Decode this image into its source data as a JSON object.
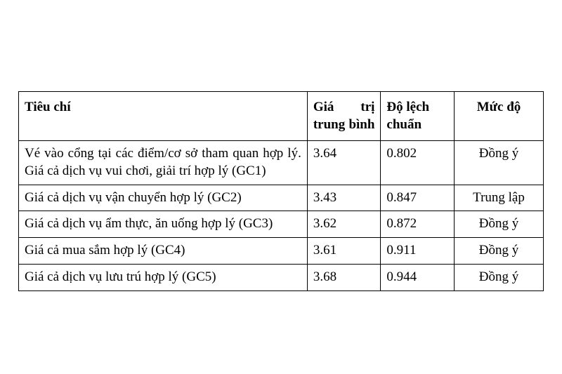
{
  "table": {
    "type": "table",
    "border_color": "#000000",
    "background_color": "#ffffff",
    "font_family": "Times New Roman",
    "font_size_pt": 14,
    "columns": [
      {
        "key": "criteria",
        "label": "Tiêu chí",
        "width_pct": 55,
        "align": "left"
      },
      {
        "key": "mean",
        "label": "Giá trị trung bình",
        "width_pct": 14,
        "align": "left"
      },
      {
        "key": "stddev",
        "label": "Độ lệch chuẩn",
        "width_pct": 14,
        "align": "left"
      },
      {
        "key": "level",
        "label": "Mức độ",
        "width_pct": 17,
        "align": "center"
      }
    ],
    "rows": [
      {
        "criteria": "Vé vào cổng tại các điểm/cơ sở tham quan hợp lý. Giá cả dịch vụ vui chơi, giải trí hợp lý (GC1)",
        "mean": "3.64",
        "stddev": "0.802",
        "level": "Đồng ý"
      },
      {
        "criteria": "Giá cả dịch vụ vận chuyển hợp lý (GC2)",
        "mean": "3.43",
        "stddev": "0.847",
        "level": "Trung lập"
      },
      {
        "criteria": "Giá cả dịch vụ ẩm thực, ăn uống hợp lý (GC3)",
        "mean": "3.62",
        "stddev": "0.872",
        "level": "Đồng ý"
      },
      {
        "criteria": "Giá cả mua sắm hợp lý (GC4)",
        "mean": "3.61",
        "stddev": "0.911",
        "level": "Đồng ý"
      },
      {
        "criteria": "Giá cả dịch vụ lưu trú hợp lý (GC5)",
        "mean": "3.68",
        "stddev": "0.944",
        "level": "Đồng ý"
      }
    ]
  }
}
